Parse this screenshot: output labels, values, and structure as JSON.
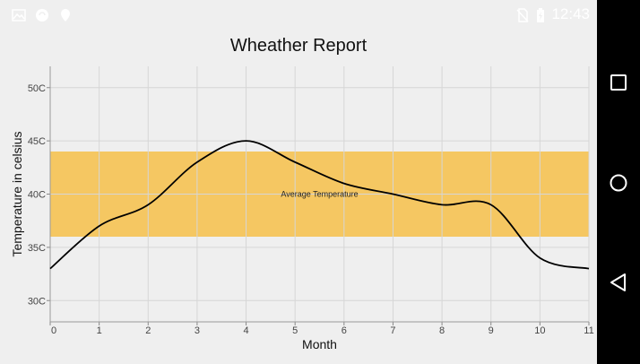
{
  "status_bar": {
    "time": "12:43",
    "left_icons": [
      "image-icon",
      "sync-icon",
      "location-icon"
    ],
    "right_icons": [
      "no-sim-icon",
      "battery-charging-icon"
    ]
  },
  "chart_data": {
    "type": "line",
    "title": "Wheather Report",
    "xlabel": "Month",
    "ylabel": "Temperature in celsius",
    "x": [
      0,
      1,
      2,
      3,
      4,
      5,
      6,
      7,
      8,
      9,
      10,
      11
    ],
    "series": [
      {
        "values": [
          33,
          37,
          39,
          43,
          45,
          43,
          41,
          40,
          39,
          39,
          34,
          33
        ],
        "color": "#000000"
      }
    ],
    "xlim": [
      0,
      11
    ],
    "ylim": [
      28,
      52
    ],
    "y_ticks": [
      30,
      35,
      40,
      45,
      50
    ],
    "y_tick_suffix": "C",
    "grid": true,
    "band": {
      "from": 36,
      "to": 44,
      "label": "Average Temperature",
      "color": "#f5c762"
    }
  },
  "nav_bar": {
    "buttons": [
      "recents-button",
      "home-button",
      "back-button"
    ]
  }
}
